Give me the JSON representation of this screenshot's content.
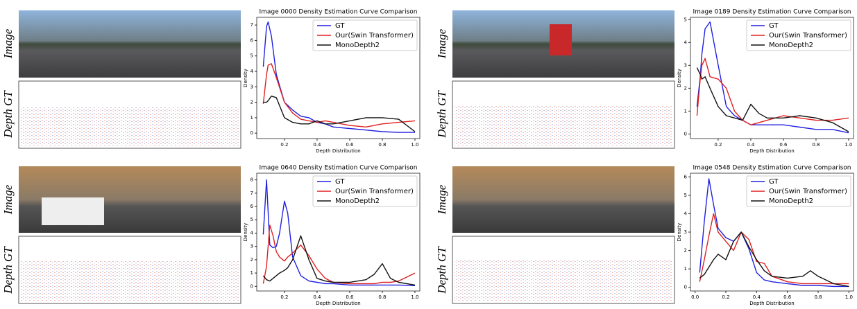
{
  "panels": [
    {
      "image_label": "Image",
      "depth_label": "Depth GT"
    },
    {
      "image_label": "Image",
      "depth_label": "Depth GT"
    },
    {
      "image_label": "Image",
      "depth_label": "Depth GT"
    },
    {
      "image_label": "Image",
      "depth_label": "Depth GT"
    }
  ],
  "chart_data": [
    {
      "type": "line",
      "title": "Image 0000 Density Estimation Curve Comparison",
      "x_label": "Depth Distribution",
      "y_label": "Density",
      "legend": "upper right",
      "x": [
        0.07,
        0.09,
        0.1,
        0.12,
        0.15,
        0.2,
        0.25,
        0.3,
        0.35,
        0.4,
        0.45,
        0.5,
        0.6,
        0.7,
        0.8,
        0.9,
        1.0
      ],
      "series": [
        {
          "name": "GT",
          "color": "#2020e0",
          "values": [
            4.3,
            6.9,
            7.2,
            6.3,
            3.8,
            2.0,
            1.5,
            1.1,
            1.0,
            0.7,
            0.6,
            0.4,
            0.3,
            0.2,
            0.1,
            0.05,
            0.05
          ]
        },
        {
          "name": "Our(Swin Transformer)",
          "color": "#e02020",
          "values": [
            1.9,
            3.8,
            4.4,
            4.5,
            3.6,
            2.0,
            1.3,
            0.9,
            0.8,
            0.7,
            0.8,
            0.7,
            0.5,
            0.4,
            0.6,
            0.7,
            0.8
          ]
        },
        {
          "name": "MonoDepth2",
          "color": "#111111",
          "values": [
            2.0,
            2.0,
            2.1,
            2.4,
            2.3,
            1.0,
            0.7,
            0.6,
            0.6,
            0.8,
            0.6,
            0.6,
            0.8,
            1.0,
            1.0,
            0.9,
            0.1
          ]
        }
      ],
      "xlim": [
        0.03,
        1.03
      ],
      "xticks": [
        0.2,
        0.4,
        0.6,
        0.8,
        {
          "value": 1,
          "label": "1.0"
        }
      ],
      "ylim": [
        -0.35,
        7.5
      ],
      "yticks": [
        0,
        1,
        2,
        3,
        4,
        5,
        6,
        7
      ]
    },
    {
      "type": "line",
      "title": "Image 0189 Density Estimation Curve Comparison",
      "x_label": "Depth Distribution",
      "y_label": "Density",
      "legend": "upper right",
      "x": [
        0.07,
        0.09,
        0.1,
        0.12,
        0.15,
        0.2,
        0.25,
        0.3,
        0.35,
        0.4,
        0.45,
        0.5,
        0.6,
        0.7,
        0.8,
        0.9,
        1.0
      ],
      "series": [
        {
          "name": "GT",
          "color": "#2020e0",
          "values": [
            1.2,
            2.5,
            3.5,
            4.6,
            4.9,
            3.0,
            1.2,
            0.8,
            0.6,
            0.4,
            0.4,
            0.4,
            0.4,
            0.3,
            0.2,
            0.2,
            0.05
          ]
        },
        {
          "name": "Our(Swin Transformer)",
          "color": "#e02020",
          "values": [
            0.8,
            2.4,
            3.0,
            3.3,
            2.5,
            2.4,
            2.0,
            1.0,
            0.6,
            0.4,
            0.5,
            0.6,
            0.8,
            0.7,
            0.6,
            0.6,
            0.7
          ]
        },
        {
          "name": "MonoDepth2",
          "color": "#111111",
          "values": [
            2.9,
            2.6,
            2.4,
            2.5,
            2.0,
            1.2,
            0.8,
            0.7,
            0.6,
            1.3,
            0.9,
            0.7,
            0.7,
            0.8,
            0.7,
            0.5,
            0.1
          ]
        }
      ],
      "xlim": [
        0.03,
        1.03
      ],
      "xticks": [
        0.2,
        0.4,
        0.6,
        0.8,
        {
          "value": 1,
          "label": "1.0"
        }
      ],
      "ylim": [
        -0.2,
        5.1
      ],
      "yticks": [
        0,
        1,
        2,
        3,
        4,
        5
      ]
    },
    {
      "type": "line",
      "title": "Image 0640 Density Estimation Curve Comparison",
      "x_label": "Depth Distribution",
      "y_label": "Density",
      "legend": "upper right",
      "x": [
        0.07,
        0.09,
        0.11,
        0.13,
        0.15,
        0.17,
        0.2,
        0.22,
        0.25,
        0.3,
        0.35,
        0.4,
        0.45,
        0.5,
        0.6,
        0.7,
        0.75,
        0.8,
        0.85,
        0.9,
        1.0
      ],
      "series": [
        {
          "name": "GT",
          "color": "#2020e0",
          "values": [
            3.9,
            8.0,
            3.1,
            2.9,
            3.0,
            4.0,
            6.4,
            5.5,
            2.2,
            0.8,
            0.4,
            0.3,
            0.2,
            0.2,
            0.1,
            0.1,
            0.1,
            0.1,
            0.1,
            0.1,
            0.05
          ]
        },
        {
          "name": "Our(Swin Transformer)",
          "color": "#e02020",
          "values": [
            0.2,
            1.5,
            4.6,
            3.8,
            2.6,
            2.2,
            1.9,
            2.2,
            2.5,
            3.1,
            2.3,
            1.3,
            0.6,
            0.3,
            0.2,
            0.2,
            0.2,
            0.3,
            0.3,
            0.4,
            1.0
          ]
        },
        {
          "name": "MonoDepth2",
          "color": "#111111",
          "values": [
            0.8,
            0.5,
            0.4,
            0.6,
            0.8,
            1.0,
            1.2,
            1.4,
            2.0,
            3.8,
            2.0,
            0.6,
            0.4,
            0.3,
            0.3,
            0.5,
            0.9,
            1.7,
            0.6,
            0.3,
            0.1
          ]
        }
      ],
      "xlim": [
        0.03,
        1.03
      ],
      "xticks": [
        0.2,
        0.4,
        0.6,
        0.8,
        {
          "value": 1,
          "label": "1.0"
        }
      ],
      "ylim": [
        -0.35,
        8.5
      ],
      "yticks": [
        0,
        1,
        2,
        3,
        4,
        5,
        6,
        7,
        8
      ]
    },
    {
      "type": "line",
      "title": "Image 0548 Density Estimation Curve Comparison",
      "x_label": "Depth Distribution",
      "y_label": "Density",
      "legend": "upper right",
      "x": [
        0.03,
        0.06,
        0.09,
        0.12,
        0.15,
        0.2,
        0.25,
        0.3,
        0.35,
        0.4,
        0.45,
        0.5,
        0.6,
        0.7,
        0.75,
        0.8,
        0.9,
        1.0
      ],
      "series": [
        {
          "name": "GT",
          "color": "#2020e0",
          "values": [
            0.8,
            3.6,
            5.9,
            4.5,
            3.2,
            2.7,
            2.5,
            3.0,
            2.1,
            0.8,
            0.4,
            0.3,
            0.2,
            0.1,
            0.1,
            0.1,
            0.05,
            0.05
          ]
        },
        {
          "name": "Our(Swin Transformer)",
          "color": "#e02020",
          "values": [
            0.3,
            1.5,
            2.8,
            4.0,
            3.0,
            2.5,
            2.0,
            3.0,
            2.6,
            1.4,
            1.3,
            0.6,
            0.3,
            0.2,
            0.2,
            0.2,
            0.2,
            0.2
          ]
        },
        {
          "name": "MonoDepth2",
          "color": "#111111",
          "values": [
            0.5,
            0.7,
            1.1,
            1.5,
            1.8,
            1.5,
            2.5,
            3.0,
            2.2,
            1.5,
            0.9,
            0.6,
            0.5,
            0.6,
            0.9,
            0.6,
            0.2,
            0.05
          ]
        }
      ],
      "xlim": [
        -0.03,
        1.03
      ],
      "xticks": [
        {
          "value": 0,
          "label": "0.0"
        },
        0.2,
        0.4,
        0.6,
        0.8,
        {
          "value": 1,
          "label": "1.0"
        }
      ],
      "ylim": [
        -0.2,
        6.2
      ],
      "yticks": [
        0,
        1,
        2,
        3,
        4,
        5,
        6
      ]
    }
  ]
}
